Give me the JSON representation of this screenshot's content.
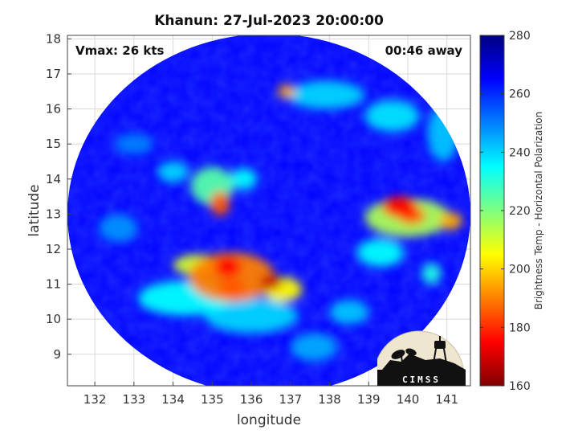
{
  "chart_data": {
    "type": "heatmap",
    "title": "Khanun: 27-Jul-2023 20:00:00",
    "xlabel": "longitude",
    "ylabel": "latitude",
    "xlim": [
      131.3,
      141.6
    ],
    "ylim": [
      8.1,
      18.1
    ],
    "xticks": [
      "132",
      "133",
      "134",
      "135",
      "136",
      "137",
      "138",
      "139",
      "140",
      "141"
    ],
    "yticks": [
      "9",
      "10",
      "11",
      "12",
      "13",
      "14",
      "15",
      "16",
      "17",
      "18"
    ],
    "grid": true,
    "swath": {
      "center_lon": 136.45,
      "center_lat": 13.0,
      "radius_deg": 5.15
    },
    "background_value": 265,
    "features": [
      {
        "lon": 135.5,
        "lat": 11.2,
        "value": 190,
        "lon_r": 1.1,
        "lat_r": 0.7
      },
      {
        "lon": 135.4,
        "lat": 11.5,
        "value": 175,
        "lon_r": 0.35,
        "lat_r": 0.3
      },
      {
        "lon": 135.5,
        "lat": 10.9,
        "value": 185,
        "lon_r": 0.35,
        "lat_r": 0.25
      },
      {
        "lon": 136.5,
        "lat": 11.05,
        "value": 168,
        "lon_r": 0.28,
        "lat_r": 0.22
      },
      {
        "lon": 136.8,
        "lat": 10.85,
        "value": 205,
        "lon_r": 0.5,
        "lat_r": 0.35
      },
      {
        "lon": 134.6,
        "lat": 11.55,
        "value": 210,
        "lon_r": 0.6,
        "lat_r": 0.3
      },
      {
        "lon": 134.3,
        "lat": 10.6,
        "value": 235,
        "lon_r": 1.2,
        "lat_r": 0.5
      },
      {
        "lon": 136.0,
        "lat": 10.1,
        "value": 240,
        "lon_r": 1.2,
        "lat_r": 0.5
      },
      {
        "lon": 135.2,
        "lat": 13.3,
        "value": 185,
        "lon_r": 0.25,
        "lat_r": 0.35
      },
      {
        "lon": 135.0,
        "lat": 13.8,
        "value": 225,
        "lon_r": 0.55,
        "lat_r": 0.55
      },
      {
        "lon": 135.8,
        "lat": 14.0,
        "value": 235,
        "lon_r": 0.35,
        "lat_r": 0.3
      },
      {
        "lon": 134.0,
        "lat": 14.2,
        "value": 240,
        "lon_r": 0.4,
        "lat_r": 0.3
      },
      {
        "lon": 139.8,
        "lat": 13.2,
        "value": 175,
        "lon_r": 0.45,
        "lat_r": 0.3
      },
      {
        "lon": 140.1,
        "lat": 12.95,
        "value": 185,
        "lon_r": 0.35,
        "lat_r": 0.25
      },
      {
        "lon": 140.0,
        "lat": 12.9,
        "value": 215,
        "lon_r": 1.1,
        "lat_r": 0.55
      },
      {
        "lon": 141.1,
        "lat": 12.8,
        "value": 195,
        "lon_r": 0.3,
        "lat_r": 0.25
      },
      {
        "lon": 139.3,
        "lat": 11.9,
        "value": 235,
        "lon_r": 0.6,
        "lat_r": 0.4
      },
      {
        "lon": 136.9,
        "lat": 16.5,
        "value": 195,
        "lon_r": 0.22,
        "lat_r": 0.2
      },
      {
        "lon": 137.9,
        "lat": 16.4,
        "value": 240,
        "lon_r": 1.0,
        "lat_r": 0.4
      },
      {
        "lon": 139.6,
        "lat": 15.8,
        "value": 238,
        "lon_r": 0.7,
        "lat_r": 0.45
      },
      {
        "lon": 140.9,
        "lat": 15.3,
        "value": 242,
        "lon_r": 0.4,
        "lat_r": 0.8
      },
      {
        "lon": 140.6,
        "lat": 11.3,
        "value": 232,
        "lon_r": 0.25,
        "lat_r": 0.3
      },
      {
        "lon": 133.0,
        "lat": 15.0,
        "value": 250,
        "lon_r": 0.5,
        "lat_r": 0.3
      },
      {
        "lon": 132.6,
        "lat": 12.6,
        "value": 248,
        "lon_r": 0.5,
        "lat_r": 0.4
      },
      {
        "lon": 137.6,
        "lat": 9.2,
        "value": 245,
        "lon_r": 0.6,
        "lat_r": 0.4
      },
      {
        "lon": 138.5,
        "lat": 10.2,
        "value": 242,
        "lon_r": 0.5,
        "lat_r": 0.35
      }
    ],
    "colorbar": {
      "label": "Brightness Temp - Horizontal Polarization",
      "min": 160,
      "max": 280,
      "ticks": [
        "280",
        "260",
        "240",
        "220",
        "200",
        "180",
        "160"
      ],
      "colormap": "jet"
    },
    "annotations": {
      "vmax": "Vmax: 26 kts",
      "away": "00:46 away"
    }
  },
  "logo": {
    "text": "CIMSS"
  },
  "colors": {
    "grid": "#d9d9d9",
    "axes": "#444444",
    "background": "#ffffff"
  }
}
